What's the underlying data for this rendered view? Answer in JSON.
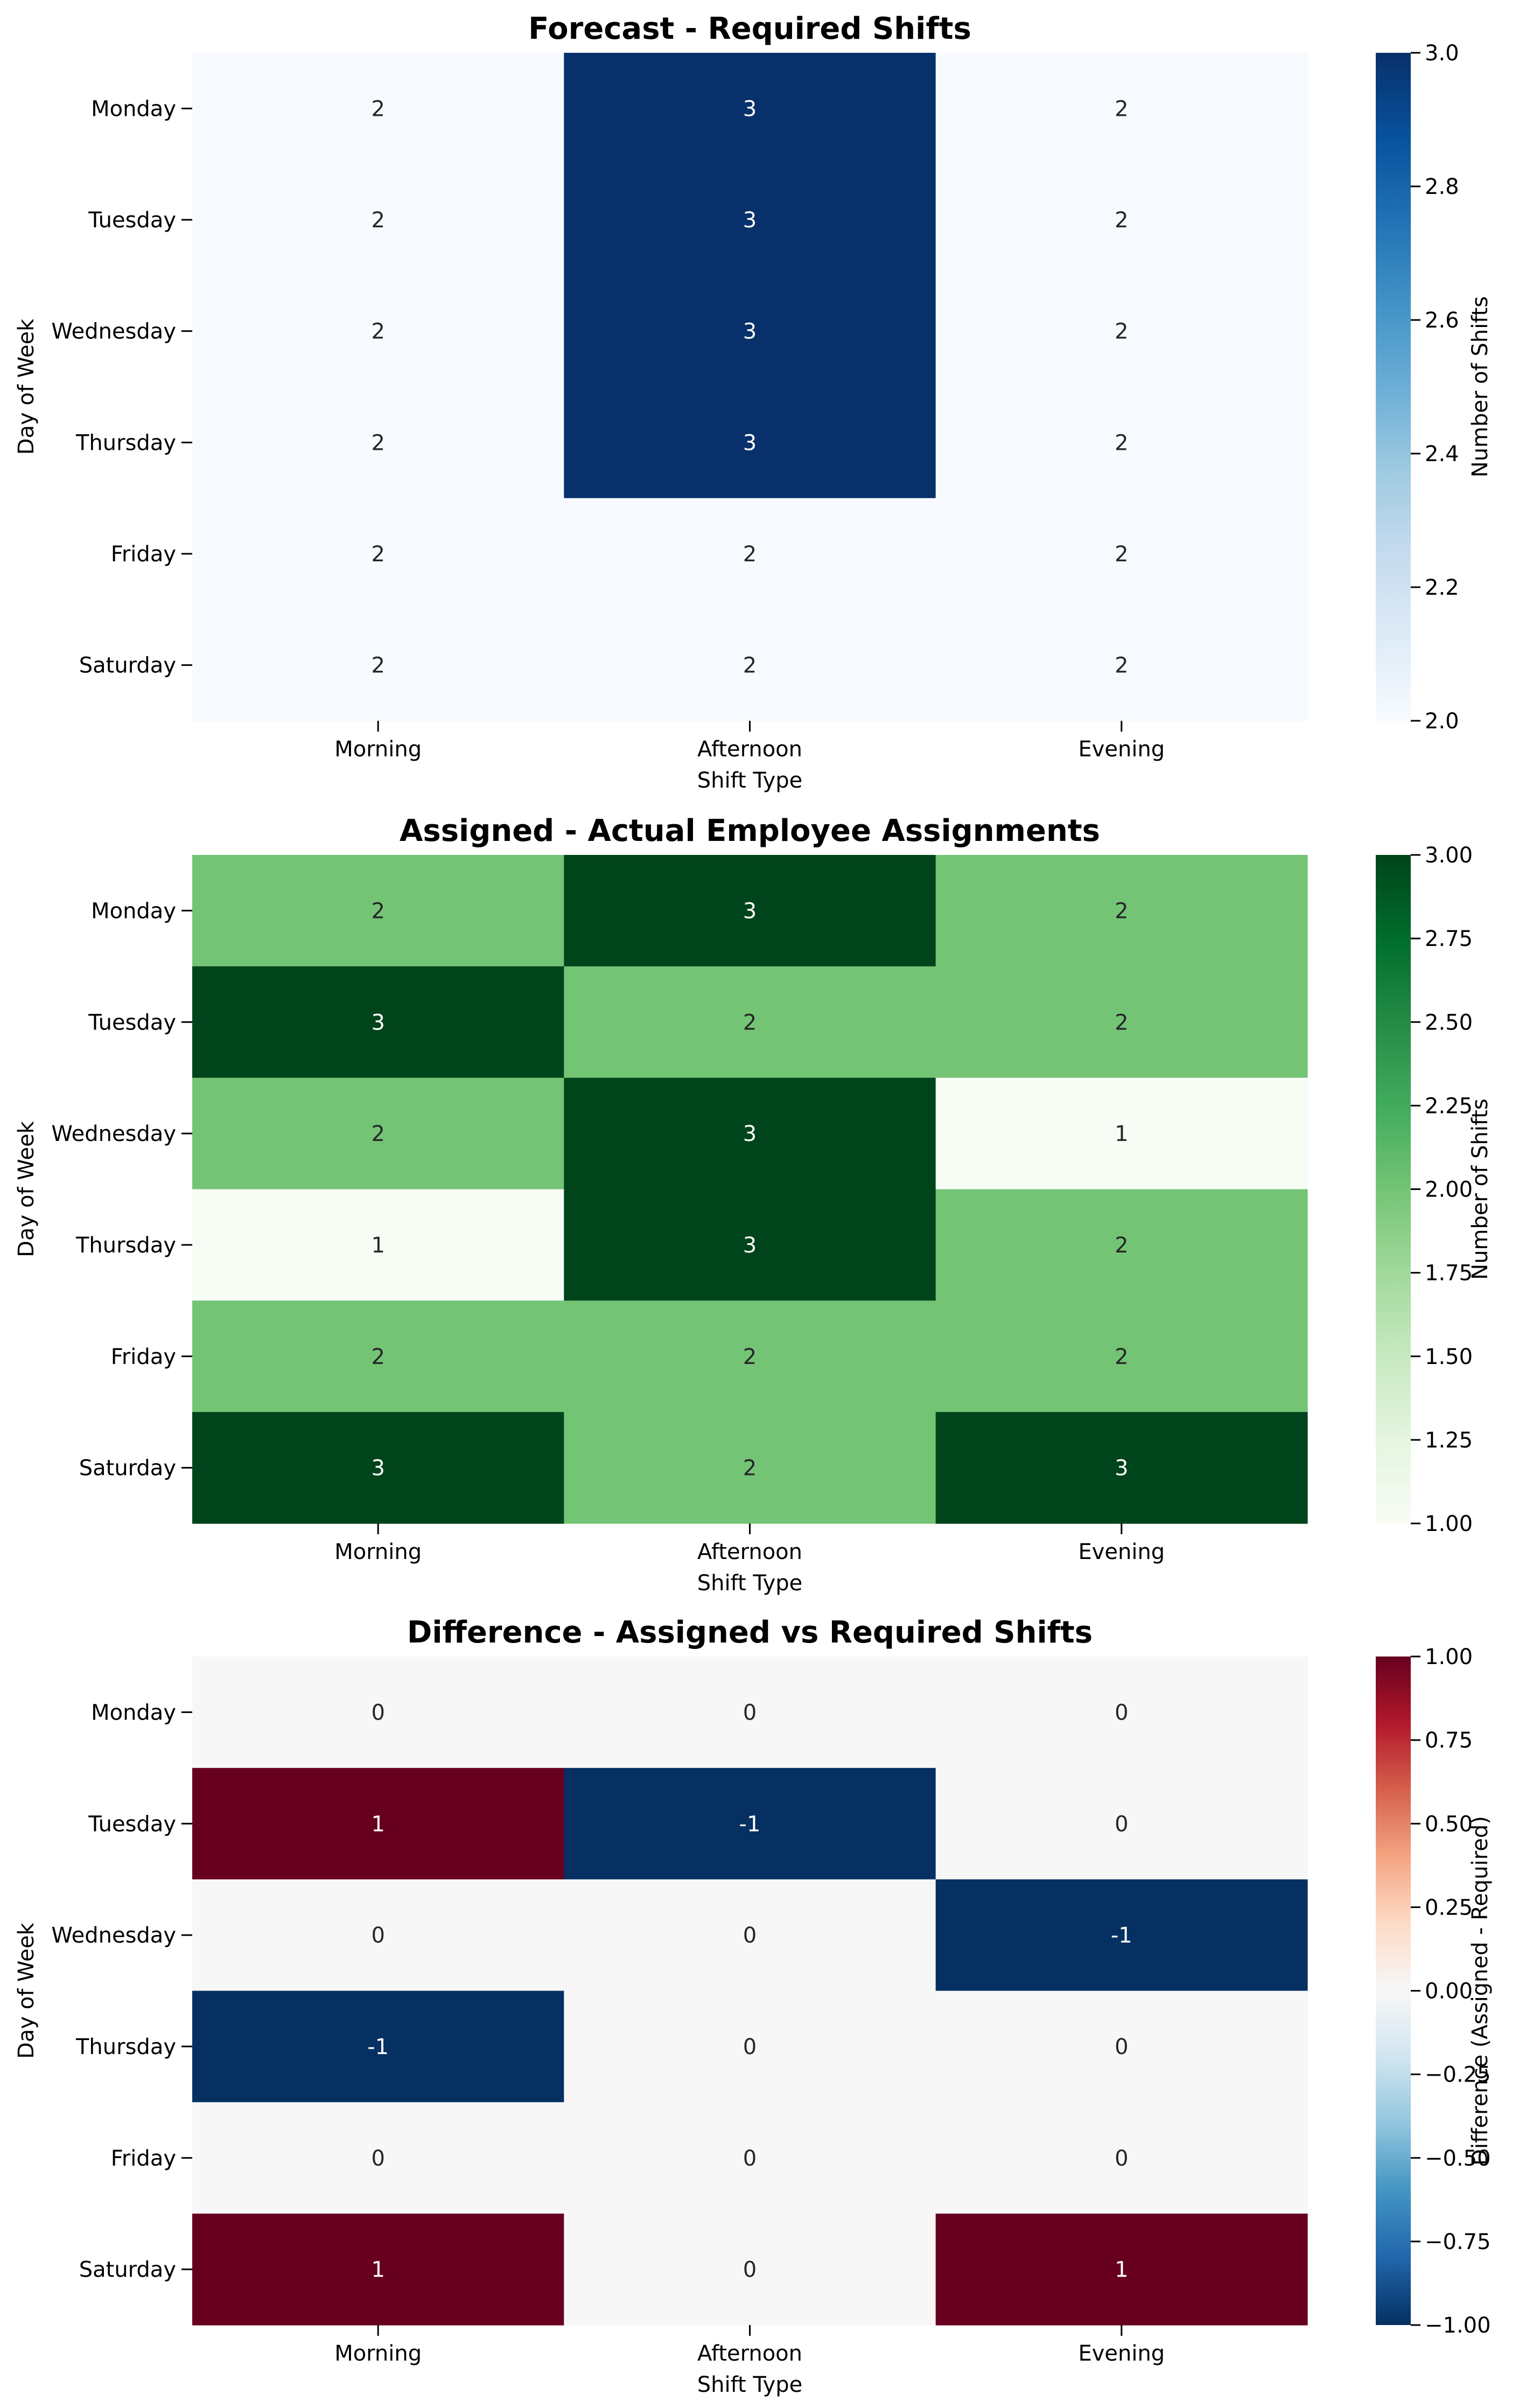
{
  "chart_data": [
    {
      "type": "heatmap",
      "title": "Forecast - Required Shifts",
      "xlabel": "Shift Type",
      "ylabel": "Day of Week",
      "x_categories": [
        "Morning",
        "Afternoon",
        "Evening"
      ],
      "y_categories": [
        "Monday",
        "Tuesday",
        "Wednesday",
        "Thursday",
        "Friday",
        "Saturday"
      ],
      "values": [
        [
          2,
          3,
          2
        ],
        [
          2,
          3,
          2
        ],
        [
          2,
          3,
          2
        ],
        [
          2,
          3,
          2
        ],
        [
          2,
          2,
          2
        ],
        [
          2,
          2,
          2
        ]
      ],
      "cell_labels": [
        [
          "2",
          "3",
          "2"
        ],
        [
          "2",
          "3",
          "2"
        ],
        [
          "2",
          "3",
          "2"
        ],
        [
          "2",
          "3",
          "2"
        ],
        [
          "2",
          "2",
          "2"
        ],
        [
          "2",
          "2",
          "2"
        ]
      ],
      "colormap": "Blues",
      "colormap_stops": [
        "#f7fbff",
        "#deebf7",
        "#c6dbef",
        "#9ecae1",
        "#6baed6",
        "#4292c6",
        "#2171b5",
        "#08519c",
        "#08306b"
      ],
      "vmin": 2,
      "vmax": 3,
      "colorbar_label": "Number of Shifts",
      "colorbar_ticks": [
        2.0,
        2.2,
        2.4,
        2.6,
        2.8,
        3.0
      ],
      "colorbar_tick_labels": [
        "2.0",
        "2.2",
        "2.4",
        "2.6",
        "2.8",
        "3.0"
      ]
    },
    {
      "type": "heatmap",
      "title": "Assigned - Actual Employee Assignments",
      "xlabel": "Shift Type",
      "ylabel": "Day of Week",
      "x_categories": [
        "Morning",
        "Afternoon",
        "Evening"
      ],
      "y_categories": [
        "Monday",
        "Tuesday",
        "Wednesday",
        "Thursday",
        "Friday",
        "Saturday"
      ],
      "values": [
        [
          2,
          3,
          2
        ],
        [
          3,
          2,
          2
        ],
        [
          2,
          3,
          1
        ],
        [
          1,
          3,
          2
        ],
        [
          2,
          2,
          2
        ],
        [
          3,
          2,
          3
        ]
      ],
      "cell_labels": [
        [
          "2",
          "3",
          "2"
        ],
        [
          "3",
          "2",
          "2"
        ],
        [
          "2",
          "3",
          "1"
        ],
        [
          "1",
          "3",
          "2"
        ],
        [
          "2",
          "2",
          "2"
        ],
        [
          "3",
          "2",
          "3"
        ]
      ],
      "colormap": "Greens",
      "colormap_stops": [
        "#f7fcf5",
        "#e5f5e0",
        "#c7e9c0",
        "#a1d99b",
        "#74c476",
        "#41ab5d",
        "#238b45",
        "#006d2c",
        "#00441b"
      ],
      "vmin": 1,
      "vmax": 3,
      "colorbar_label": "Number of Shifts",
      "colorbar_ticks": [
        1.0,
        1.25,
        1.5,
        1.75,
        2.0,
        2.25,
        2.5,
        2.75,
        3.0
      ],
      "colorbar_tick_labels": [
        "1.00",
        "1.25",
        "1.50",
        "1.75",
        "2.00",
        "2.25",
        "2.50",
        "2.75",
        "3.00"
      ]
    },
    {
      "type": "heatmap",
      "title": "Difference - Assigned vs Required Shifts",
      "xlabel": "Shift Type",
      "ylabel": "Day of Week",
      "x_categories": [
        "Morning",
        "Afternoon",
        "Evening"
      ],
      "y_categories": [
        "Monday",
        "Tuesday",
        "Wednesday",
        "Thursday",
        "Friday",
        "Saturday"
      ],
      "values": [
        [
          0,
          0,
          0
        ],
        [
          1,
          -1,
          0
        ],
        [
          0,
          0,
          -1
        ],
        [
          -1,
          0,
          0
        ],
        [
          0,
          0,
          0
        ],
        [
          1,
          0,
          1
        ]
      ],
      "cell_labels": [
        [
          "0",
          "0",
          "0"
        ],
        [
          "1",
          "-1",
          "0"
        ],
        [
          "0",
          "0",
          "-1"
        ],
        [
          "-1",
          "0",
          "0"
        ],
        [
          "0",
          "0",
          "0"
        ],
        [
          "1",
          "0",
          "1"
        ]
      ],
      "colormap": "RdBu_r",
      "colormap_stops": [
        "#053061",
        "#2166ac",
        "#4393c3",
        "#92c5de",
        "#d1e5f0",
        "#f7f7f7",
        "#fddbc7",
        "#f4a582",
        "#d6604d",
        "#b2182b",
        "#67001f"
      ],
      "vmin": -1,
      "vmax": 1,
      "colorbar_label": "Difference (Assigned - Required)",
      "colorbar_ticks": [
        -1.0,
        -0.75,
        -0.5,
        -0.25,
        0.0,
        0.25,
        0.5,
        0.75,
        1.0
      ],
      "colorbar_tick_labels": [
        "−1.00",
        "−0.75",
        "−0.50",
        "−0.25",
        "0.00",
        "0.25",
        "0.50",
        "0.75",
        "1.00"
      ]
    }
  ]
}
